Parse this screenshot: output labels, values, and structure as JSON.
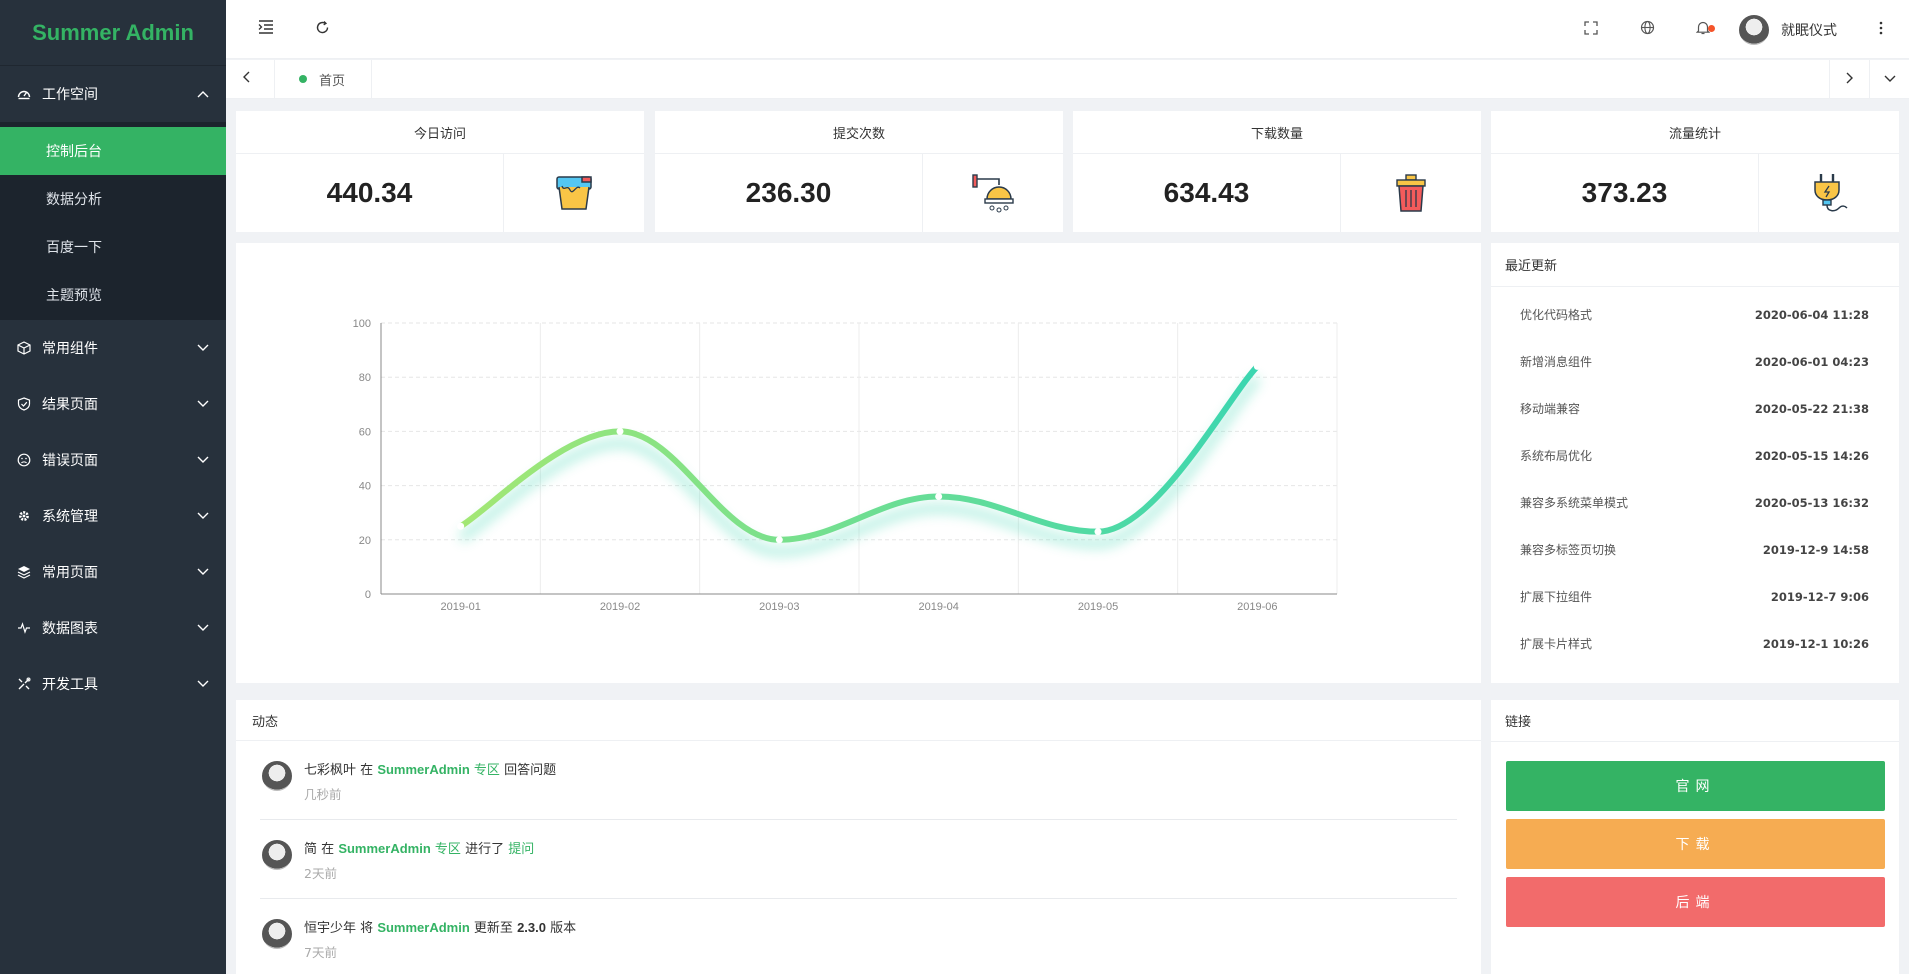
{
  "app": {
    "brand": "Summer Admin"
  },
  "sidebar": {
    "groups": [
      {
        "label": "工作空间",
        "icon": "dashboard-icon",
        "expanded": true,
        "items": [
          {
            "label": "控制后台",
            "active": true
          },
          {
            "label": "数据分析",
            "active": false
          },
          {
            "label": "百度一下",
            "active": false
          },
          {
            "label": "主题预览",
            "active": false
          }
        ]
      },
      {
        "label": "常用组件",
        "icon": "cube-icon"
      },
      {
        "label": "结果页面",
        "icon": "shield-check-icon"
      },
      {
        "label": "错误页面",
        "icon": "sad-face-icon"
      },
      {
        "label": "系统管理",
        "icon": "gear-icon"
      },
      {
        "label": "常用页面",
        "icon": "layers-icon"
      },
      {
        "label": "数据图表",
        "icon": "pulse-icon"
      },
      {
        "label": "开发工具",
        "icon": "tools-icon"
      }
    ]
  },
  "header": {
    "icons": [
      "menu-fold-icon",
      "refresh-icon",
      "fullscreen-icon",
      "globe-icon",
      "bell-icon",
      "more-icon"
    ],
    "user": {
      "name": "就眠仪式"
    },
    "notification_dot_color": "#f5542a"
  },
  "tabs": [
    {
      "label": "首页",
      "active": true
    }
  ],
  "stats": [
    {
      "title": "今日访问",
      "value": "440.34",
      "icon": "paint-bucket-icon"
    },
    {
      "title": "提交次数",
      "value": "236.30",
      "icon": "shower-icon"
    },
    {
      "title": "下载数量",
      "value": "634.43",
      "icon": "trash-can-icon"
    },
    {
      "title": "流量统计",
      "value": "373.23",
      "icon": "power-plug-icon"
    }
  ],
  "chart_data": {
    "type": "line",
    "categories": [
      "2019-01",
      "2019-02",
      "2019-03",
      "2019-04",
      "2019-05",
      "2019-06"
    ],
    "values": [
      25,
      60,
      20,
      36,
      23,
      84
    ],
    "smooth": true,
    "ylim": [
      0,
      100
    ],
    "yticks": [
      0,
      20,
      40,
      60,
      80,
      100
    ],
    "grid": true,
    "colors": {
      "start": "#a3e774",
      "end": "#3bd6b0"
    }
  },
  "recent_updates": {
    "title": "最近更新",
    "items": [
      {
        "text": "优化代码格式",
        "date": "2020-06-04 11:28"
      },
      {
        "text": "新增消息组件",
        "date": "2020-06-01 04:23"
      },
      {
        "text": "移动端兼容",
        "date": "2020-05-22 21:38"
      },
      {
        "text": "系统布局优化",
        "date": "2020-05-15 14:26"
      },
      {
        "text": "兼容多系统菜单模式",
        "date": "2020-05-13 16:32"
      },
      {
        "text": "兼容多标签页切换",
        "date": "2019-12-9 14:58"
      },
      {
        "text": "扩展下拉组件",
        "date": "2019-12-7 9:06"
      },
      {
        "text": "扩展卡片样式",
        "date": "2019-12-1 10:26"
      }
    ]
  },
  "activity": {
    "title": "动态",
    "items": [
      {
        "user": "七彩枫叶",
        "w1": "在",
        "proj": "SummerAdmin",
        "w2": "专区",
        "w3": "回答问题",
        "w4": "",
        "time": "几秒前"
      },
      {
        "user": "简",
        "w1": "在",
        "proj": "SummerAdmin",
        "w2": "专区",
        "w3": "进行了",
        "w4": "提问",
        "time": "2天前"
      },
      {
        "user": "恒宇少年",
        "w1": "将",
        "proj": "SummerAdmin",
        "w2": "更新至",
        "w3": "2.3.0",
        "w4": "版本",
        "time": "7天前"
      }
    ]
  },
  "links": {
    "title": "链接",
    "buttons": [
      {
        "label": "官网",
        "color": "#34b364"
      },
      {
        "label": "下载",
        "color": "#f6ac52"
      },
      {
        "label": "后端",
        "color": "#f26b6b"
      }
    ]
  },
  "colors": {
    "accent": "#34b364",
    "sidebar_bg": "#27313c",
    "submenu_bg": "#1c242d"
  }
}
